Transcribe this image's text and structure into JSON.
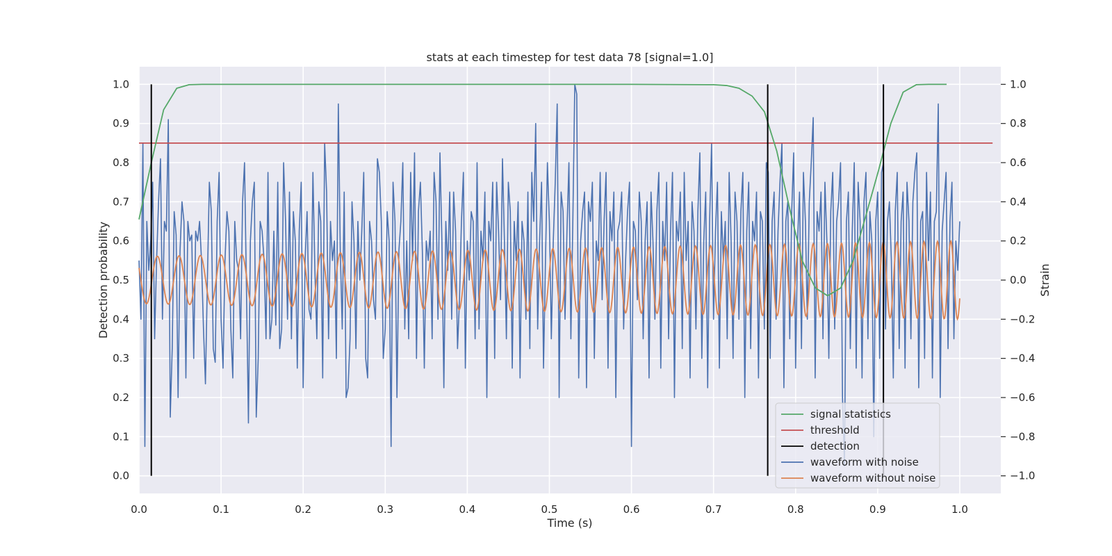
{
  "chart_data": {
    "type": "line",
    "title": "stats at each timestep for test data 78 [signal=1.0]",
    "xlabel": "Time (s)",
    "ylabel": "Detection probability",
    "y2label": "Strain",
    "xlim": [
      0.0,
      1.05
    ],
    "ylim": [
      -0.045,
      1.045
    ],
    "y2lim": [
      -1.09,
      1.09
    ],
    "grid": true,
    "xticks": [
      "0.0",
      "0.1",
      "0.2",
      "0.3",
      "0.4",
      "0.5",
      "0.6",
      "0.7",
      "0.8",
      "0.9",
      "1.0"
    ],
    "xtick_values": [
      0.0,
      0.1,
      0.2,
      0.3,
      0.4,
      0.5,
      0.6,
      0.7,
      0.8,
      0.9,
      1.0
    ],
    "yticks": [
      "0.0",
      "0.1",
      "0.2",
      "0.3",
      "0.4",
      "0.5",
      "0.6",
      "0.7",
      "0.8",
      "0.9",
      "1.0"
    ],
    "ytick_values": [
      0.0,
      0.1,
      0.2,
      0.3,
      0.4,
      0.5,
      0.6,
      0.7,
      0.8,
      0.9,
      1.0
    ],
    "y2ticks": [
      "−1.0",
      "−0.8",
      "−0.6",
      "−0.4",
      "−0.2",
      "0.0",
      "0.2",
      "0.4",
      "0.6",
      "0.8",
      "1.0"
    ],
    "y2tick_values": [
      -1.0,
      -0.8,
      -0.6,
      -0.4,
      -0.2,
      0.0,
      0.2,
      0.4,
      0.6,
      0.8,
      1.0
    ],
    "legend_position": "lower right",
    "colors": {
      "signal statistics": "#55a868",
      "threshold": "#c44e52",
      "detection": "#000000",
      "waveform with noise": "#4c72b0",
      "waveform without noise": "#dd8452",
      "plot_background": "#eaeaf2",
      "grid": "#ffffff"
    },
    "series": [
      {
        "name": "signal statistics",
        "axis": "left",
        "x": [
          0.0,
          0.015,
          0.03,
          0.046,
          0.061,
          0.077,
          0.1,
          0.2,
          0.3,
          0.4,
          0.5,
          0.6,
          0.7,
          0.716,
          0.731,
          0.747,
          0.762,
          0.777,
          0.793,
          0.808,
          0.824,
          0.839,
          0.855,
          0.87,
          0.885,
          0.901,
          0.916,
          0.931,
          0.947,
          0.962,
          0.984
        ],
        "y": [
          0.655,
          0.8,
          0.935,
          0.99,
          0.999,
          1.0,
          1.0,
          1.0,
          1.0,
          1.0,
          1.0,
          1.0,
          0.999,
          0.997,
          0.99,
          0.97,
          0.93,
          0.83,
          0.68,
          0.55,
          0.48,
          0.46,
          0.48,
          0.55,
          0.66,
          0.78,
          0.9,
          0.98,
          0.999,
          1.0,
          1.0
        ]
      },
      {
        "name": "threshold",
        "axis": "left",
        "x": [
          0.0,
          1.04
        ],
        "y": [
          0.85,
          0.85
        ]
      },
      {
        "name": "detection",
        "axis": "left",
        "x": [
          0.015,
          0.766,
          0.907
        ],
        "ymin": 0.0,
        "ymax": 1.0
      },
      {
        "name": "waveform with noise",
        "axis": "right",
        "x_start": 0.0,
        "x_end": 1.0,
        "y": [
          0.1,
          -0.2,
          0.7,
          -0.85,
          0.3,
          0.05,
          0.2,
          0.5,
          -0.3,
          0.1,
          0.4,
          0.62,
          -0.2,
          0.3,
          0.25,
          0.82,
          -0.7,
          -0.35,
          0.35,
          0.23,
          -0.6,
          0.15,
          0.4,
          0.3,
          -0.5,
          0.3,
          0.2,
          0.23,
          -0.4,
          0.25,
          0.2,
          0.3,
          0.1,
          -0.25,
          -0.53,
          0.0,
          0.5,
          0.35,
          -0.35,
          -0.42,
          0.3,
          0.55,
          -0.2,
          -0.45,
          0.1,
          0.35,
          0.25,
          -0.25,
          -0.5,
          0.3,
          0.1,
          0.05,
          -0.3,
          0.4,
          0.6,
          -0.05,
          -0.73,
          0.2,
          0.4,
          0.5,
          -0.7,
          -0.4,
          0.3,
          0.25,
          0.1,
          -0.3,
          0.55,
          -0.3,
          -0.2,
          0.25,
          -0.23,
          0.5,
          -0.35,
          -0.25,
          0.6,
          0.3,
          -0.2,
          0.45,
          -0.3,
          0.35,
          0.2,
          -0.45,
          0.25,
          0.5,
          -0.55,
          0.1,
          0.35,
          -0.15,
          -0.2,
          0.55,
          0.05,
          -0.3,
          0.4,
          0.3,
          -0.5,
          0.7,
          0.45,
          -0.3,
          0.3,
          0.1,
          0.2,
          -0.4,
          0.9,
          0.15,
          -0.25,
          0.45,
          -0.6,
          -0.55,
          -0.3,
          0.4,
          0.2,
          -0.35,
          0.3,
          0.0,
          0.25,
          0.55,
          -0.4,
          -0.5,
          0.3,
          0.2,
          -0.1,
          -0.2,
          0.62,
          0.55,
          0.3,
          -0.4,
          -0.25,
          0.35,
          0.2,
          -0.85,
          0.5,
          0.3,
          -0.6,
          0.15,
          0.3,
          0.6,
          -0.25,
          0.2,
          -0.3,
          0.55,
          0.1,
          0.65,
          -0.4,
          0.35,
          0.5,
          0.15,
          -0.45,
          0.2,
          0.1,
          0.25,
          -0.3,
          0.55,
          0.4,
          -0.2,
          0.65,
          0.2,
          -0.55,
          0.3,
          0.05,
          0.45,
          -0.2,
          0.45,
          0.25,
          -0.35,
          -0.1,
          0.3,
          0.55,
          -0.45,
          0.2,
          0.0,
          0.35,
          0.3,
          -0.3,
          0.6,
          -0.25,
          0.25,
          0.1,
          0.45,
          -0.6,
          0.3,
          0.2,
          0.5,
          -0.4,
          0.5,
          0.25,
          -0.1,
          0.62,
          0.2,
          -0.3,
          0.5,
          0.35,
          -0.45,
          0.3,
          0.1,
          0.4,
          -0.5,
          0.3,
          0.2,
          -0.2,
          0.45,
          -0.35,
          0.55,
          0.3,
          0.8,
          -0.25,
          0.2,
          0.5,
          -0.45,
          0.1,
          0.6,
          0.3,
          -0.3,
          0.2,
          0.5,
          0.9,
          -0.6,
          0.45,
          0.35,
          -0.2,
          0.25,
          0.6,
          -0.3,
          0.3,
          1.0,
          0.95,
          -0.5,
          0.2,
          0.35,
          0.45,
          -0.55,
          0.4,
          0.3,
          0.5,
          -0.4,
          0.2,
          0.1,
          0.55,
          -0.1,
          0.3,
          0.55,
          -0.45,
          0.35,
          0.2,
          0.45,
          -0.6,
          0.25,
          0.3,
          0.45,
          -0.25,
          0.1,
          0.35,
          0.5,
          -0.85,
          0.3,
          0.25,
          -0.1,
          0.45,
          0.3,
          -0.3,
          0.2,
          0.4,
          -0.5,
          0.45,
          0.2,
          -0.2,
          0.35,
          0.55,
          -0.45,
          0.3,
          0.1,
          0.5,
          -0.3,
          0.25,
          0.55,
          -0.6,
          0.3,
          0.2,
          0.45,
          -0.35,
          0.55,
          0.1,
          0.3,
          -0.5,
          0.4,
          0.25,
          -0.25,
          0.35,
          0.65,
          -0.4,
          0.2,
          0.45,
          -0.55,
          0.3,
          0.7,
          -0.2,
          0.25,
          0.5,
          -0.45,
          0.35,
          0.1,
          0.3,
          -0.3,
          0.55,
          0.2,
          -0.4,
          0.45,
          0.3,
          -0.2,
          0.35,
          0.55,
          -0.6,
          0.25,
          0.5,
          -0.35,
          0.3,
          0.2,
          0.45,
          -0.5,
          0.35,
          0.3,
          -0.25,
          0.6,
          0.55,
          -0.4,
          0.3,
          0.45,
          -0.2,
          0.25,
          0.5,
          0.7,
          -0.55,
          0.3,
          0.4,
          -0.3,
          0.35,
          0.65,
          -0.45,
          0.2,
          0.45,
          -0.35,
          0.55,
          0.3,
          -0.2,
          0.4,
          0.6,
          0.83,
          -0.5,
          0.35,
          0.25,
          0.45,
          -0.3,
          0.5,
          0.2,
          -0.4,
          0.35,
          0.55,
          -0.25,
          0.3,
          0.4,
          0.6,
          -0.6,
          -0.95,
          0.3,
          0.45,
          -0.35,
          0.25,
          0.6,
          -0.45,
          0.5,
          0.3,
          -0.5,
          0.4,
          0.55,
          -0.3,
          0.35,
          0.2,
          -0.8,
          0.3,
          0.45,
          -0.4,
          0.55,
          0.6,
          -0.25,
          0.3,
          0.4,
          0.1,
          -0.5,
          0.35,
          0.55,
          -0.35,
          0.3,
          0.45,
          -0.45,
          0.5,
          0.3,
          -0.3,
          0.4,
          0.55,
          0.65,
          -0.55,
          0.3,
          0.35,
          -0.4,
          0.55,
          0.1,
          0.45,
          -0.5,
          0.3,
          0.35,
          0.9,
          -0.6,
          0.25,
          0.4,
          0.55,
          -0.35,
          0.3,
          0.5,
          -0.3,
          0.2,
          0.05,
          0.3
        ]
      },
      {
        "name": "waveform without noise",
        "axis": "right",
        "x_start": 0.0,
        "x_end": 1.0,
        "amplitude_start": 0.12,
        "amplitude_end": 0.2,
        "frequency_start_hz": 37,
        "frequency_end_hz": 62
      }
    ]
  }
}
